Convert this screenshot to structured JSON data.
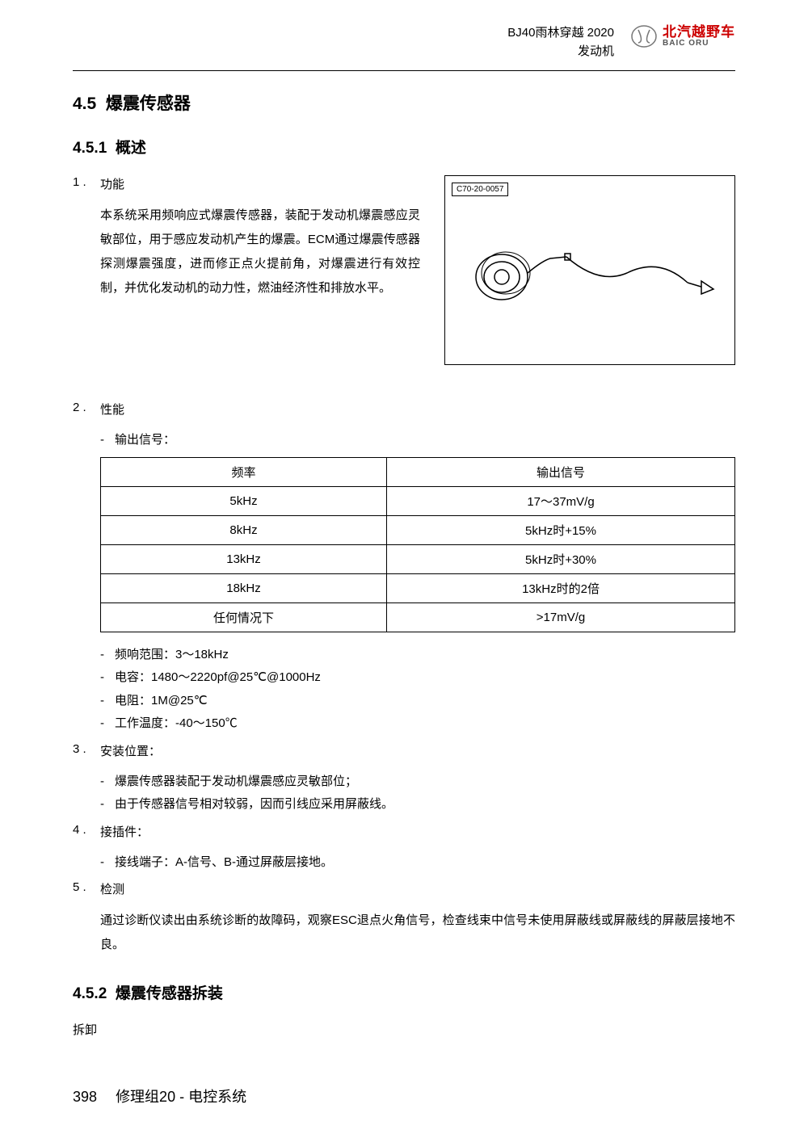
{
  "header": {
    "line1": "BJ40雨林穿越 2020",
    "line2": "发动机",
    "logo_cn": "北汽越野车",
    "logo_en": "BAIC ORU",
    "logo_color": "#cc0000"
  },
  "section": {
    "number": "4.5",
    "title": "爆震传感器"
  },
  "subsection1": {
    "number": "4.5.1",
    "title": "概述"
  },
  "item1": {
    "num": "1 .",
    "label": "功能",
    "body": "本系统采用频响应式爆震传感器，装配于发动机爆震感应灵敏部位，用于感应发动机产生的爆震。ECM通过爆震传感器探测爆震强度，进而修正点火提前角，对爆震进行有效控制，并优化发动机的动力性，燃油经济性和排放水平。"
  },
  "figure": {
    "label": "C70-20-0057"
  },
  "item2": {
    "num": "2 .",
    "label": "性能",
    "bullet1": "输出信号："
  },
  "table": {
    "columns": [
      "频率",
      "输出信号"
    ],
    "rows": [
      [
        "5kHz",
        "17～37mV/g"
      ],
      [
        "8kHz",
        "5kHz时+15%"
      ],
      [
        "13kHz",
        "5kHz时+30%"
      ],
      [
        "18kHz",
        "13kHz时的2倍"
      ],
      [
        "任何情况下",
        ">17mV/g"
      ]
    ]
  },
  "specs": [
    "频响范围：3～18kHz",
    "电容：1480～2220pf@25℃@1000Hz",
    "电阻：1M@25℃",
    "工作温度：-40～150℃"
  ],
  "item3": {
    "num": "3 .",
    "label": "安装位置：",
    "bullets": [
      "爆震传感器装配于发动机爆震感应灵敏部位；",
      "由于传感器信号相对较弱，因而引线应采用屏蔽线。"
    ]
  },
  "item4": {
    "num": "4 .",
    "label": "接插件：",
    "bullets": [
      "接线端子：A-信号、B-通过屏蔽层接地。"
    ]
  },
  "item5": {
    "num": "5 .",
    "label": "检测",
    "body": "通过诊断仪读出由系统诊断的故障码，观察ESC退点火角信号，检查线束中信号未使用屏蔽线或屏蔽线的屏蔽层接地不良。"
  },
  "subsection2": {
    "number": "4.5.2",
    "title": "爆震传感器拆装"
  },
  "disassembly_label": "拆卸",
  "footer": {
    "page": "398",
    "text": "修理组20  - 电控系统"
  },
  "colors": {
    "text": "#000000",
    "border": "#000000",
    "bg": "#ffffff"
  }
}
